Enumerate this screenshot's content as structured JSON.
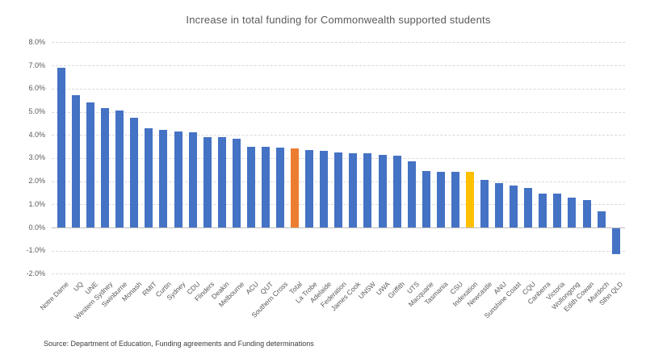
{
  "chart_data": {
    "type": "bar",
    "title": "Increase in total funding for Commonwealth supported students",
    "categories": [
      "Notre Dame",
      "UQ",
      "UNE",
      "Western Sydney",
      "Swinburne",
      "Monash",
      "RMIT",
      "Curtin",
      "Sydney",
      "CDU",
      "Flinders",
      "Deakin",
      "Melbourne",
      "ACU",
      "QUT",
      "Southern Cross",
      "Total",
      "La Trobe",
      "Adelaide",
      "Federation",
      "James Cook",
      "UNSW",
      "UWA",
      "Griffith",
      "UTS",
      "Macquarie",
      "Tasmania",
      "CSU",
      "Indexation",
      "Newcastle",
      "ANU",
      "Sunshine Coast",
      "CQU",
      "Canberra",
      "Victoria",
      "Wollongong",
      "Edith Cowan",
      "Murdoch",
      "Sthn QLD"
    ],
    "values": [
      6.9,
      5.7,
      5.4,
      5.15,
      5.05,
      4.75,
      4.3,
      4.2,
      4.15,
      4.1,
      3.9,
      3.9,
      3.85,
      3.5,
      3.5,
      3.45,
      3.4,
      3.35,
      3.3,
      3.25,
      3.2,
      3.2,
      3.15,
      3.1,
      2.85,
      2.45,
      2.4,
      2.4,
      2.4,
      2.05,
      1.9,
      1.8,
      1.7,
      1.45,
      1.45,
      1.3,
      1.2,
      0.7,
      -1.1
    ],
    "unit": "%",
    "bar_colors": {
      "default": "#4472C4",
      "Total": "#ED7D31",
      "Indexation": "#FFC000"
    },
    "ylim": [
      -2.0,
      8.0
    ],
    "ytick_labels": [
      "8.0%",
      "7.0%",
      "6.0%",
      "5.0%",
      "4.0%",
      "3.0%",
      "2.0%",
      "1.0%",
      "0.0%",
      "-1.0%",
      "-2.0%"
    ],
    "grid": "horizontal-dashed",
    "legend": "none",
    "xlabel": "",
    "ylabel": "",
    "source": "Source: Department of Education, Funding agreements and Funding determinations"
  }
}
